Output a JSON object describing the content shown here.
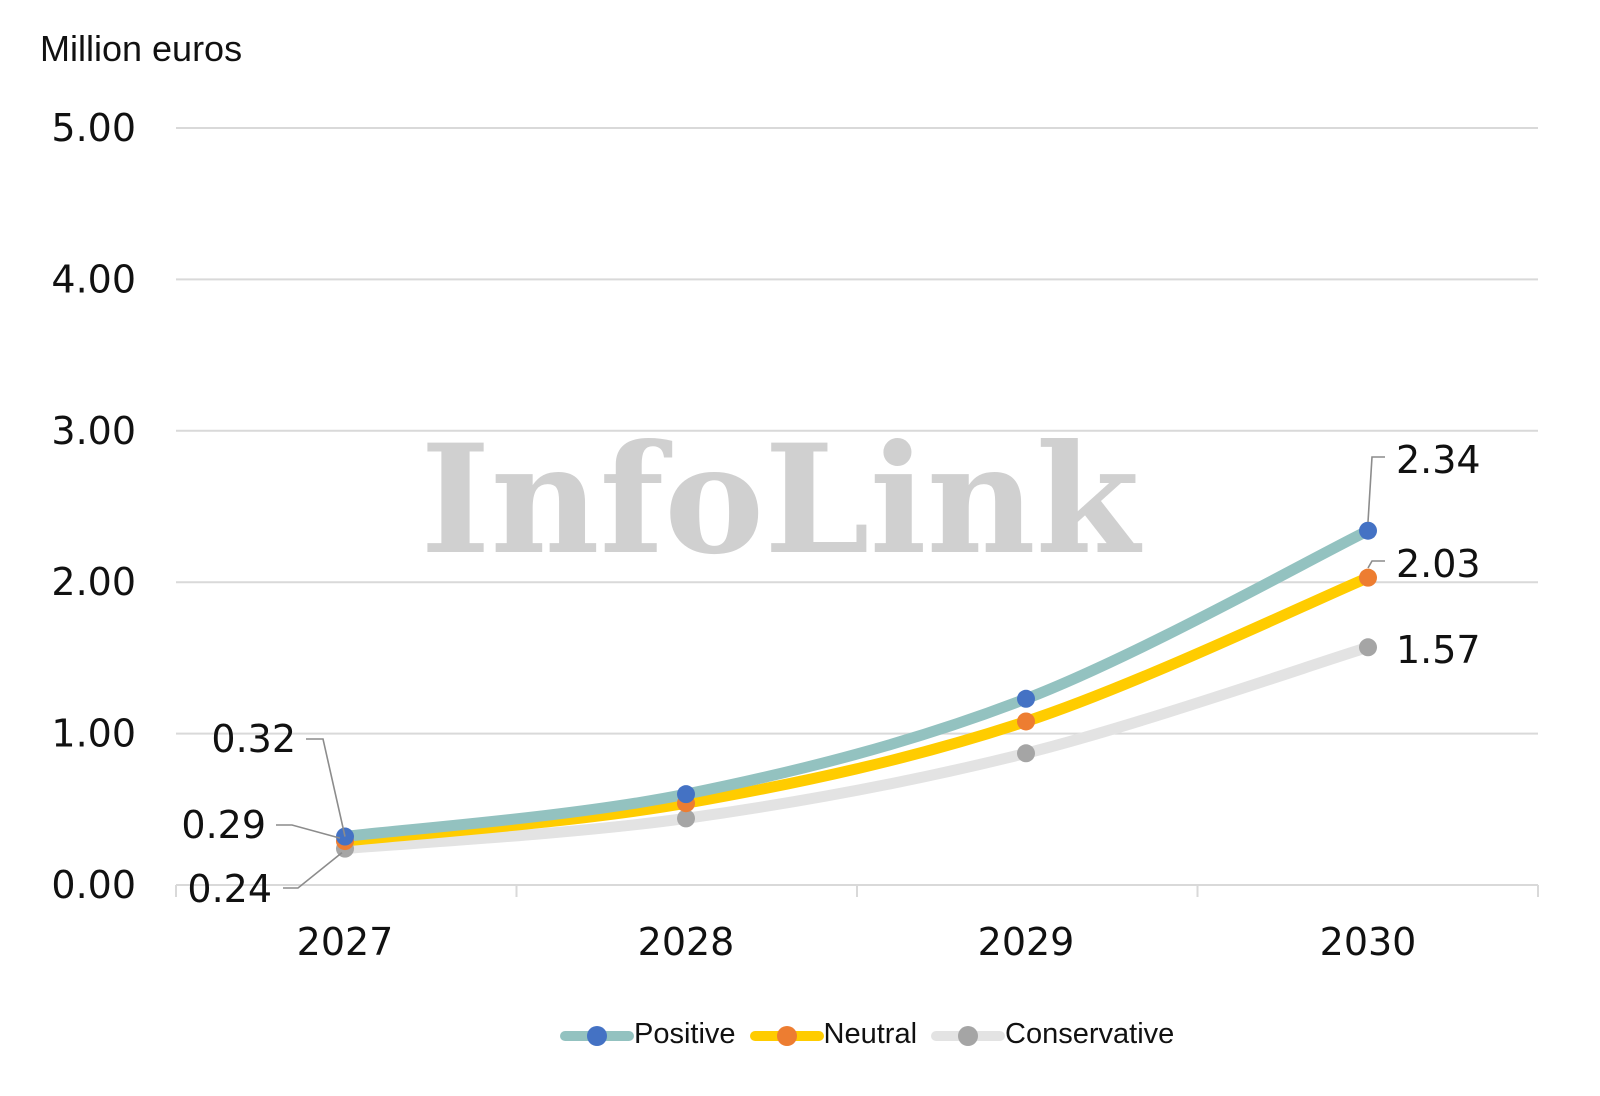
{
  "chart_data": {
    "type": "line",
    "ylabel": "Million euros",
    "watermark": "InfoLink",
    "x": [
      "2027",
      "2028",
      "2029",
      "2030"
    ],
    "ylim": [
      0,
      5
    ],
    "yticks": [
      "0.00",
      "1.00",
      "2.00",
      "3.00",
      "4.00",
      "5.00"
    ],
    "grid": true,
    "legend_position": "bottom",
    "series": [
      {
        "name": "Positive",
        "values": [
          0.32,
          0.6,
          1.23,
          2.34
        ],
        "line_color": "#93c2c0",
        "marker_color": "#4472c4"
      },
      {
        "name": "Neutral",
        "values": [
          0.29,
          0.54,
          1.08,
          2.03
        ],
        "line_color": "#ffcc00",
        "marker_color": "#ed7d31"
      },
      {
        "name": "Conservative",
        "values": [
          0.24,
          0.44,
          0.87,
          1.57
        ],
        "line_color": "#e3e3e3",
        "marker_color": "#a5a5a5"
      }
    ],
    "data_labels": [
      {
        "series": "Positive",
        "x": "2027",
        "text": "0.32"
      },
      {
        "series": "Neutral",
        "x": "2027",
        "text": "0.29"
      },
      {
        "series": "Conservative",
        "x": "2027",
        "text": "0.24"
      },
      {
        "series": "Positive",
        "x": "2030",
        "text": "2.34"
      },
      {
        "series": "Neutral",
        "x": "2030",
        "text": "2.03"
      },
      {
        "series": "Conservative",
        "x": "2030",
        "text": "1.57"
      }
    ]
  }
}
